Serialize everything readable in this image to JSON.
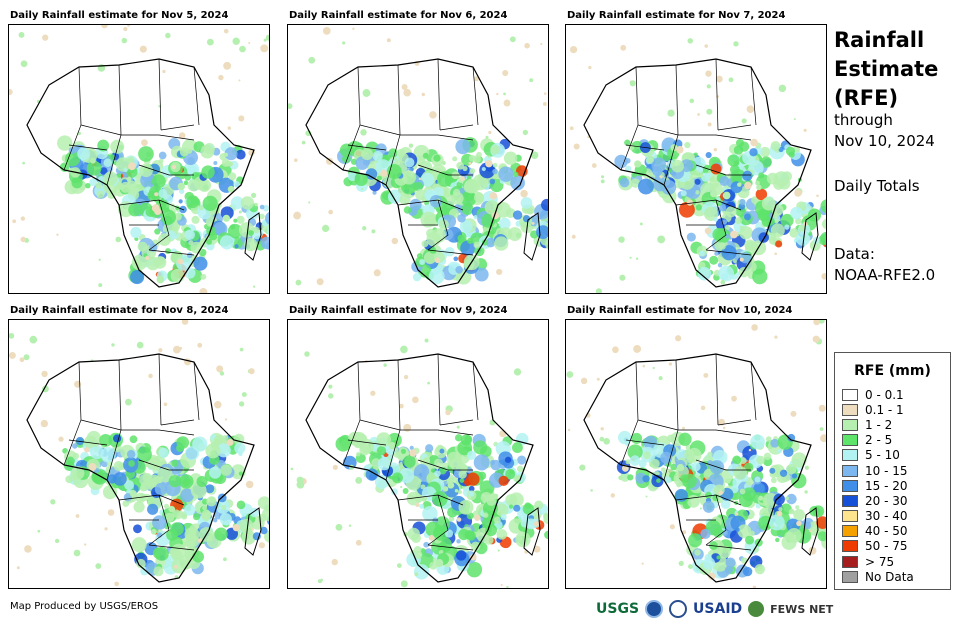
{
  "panels": [
    {
      "title": "Daily Rainfall estimate for Nov 5, 2024",
      "day": 5
    },
    {
      "title": "Daily Rainfall estimate for Nov 6, 2024",
      "day": 6
    },
    {
      "title": "Daily Rainfall estimate for Nov 7, 2024",
      "day": 7
    },
    {
      "title": "Daily Rainfall estimate for Nov 8, 2024",
      "day": 8
    },
    {
      "title": "Daily Rainfall estimate for Nov 9, 2024",
      "day": 9
    },
    {
      "title": "Daily Rainfall estimate for Nov 10, 2024",
      "day": 10
    }
  ],
  "side": {
    "title_line1": "Rainfall",
    "title_line2": "Estimate",
    "title_line3": "(RFE)",
    "through": "through",
    "date": "Nov 10, 2024",
    "totals": "Daily Totals",
    "data_label": "Data:",
    "data_source": "NOAA-RFE2.0"
  },
  "legend": {
    "title": "RFE (mm)",
    "items": [
      {
        "label": "0 - 0.1",
        "color": "#ffffff"
      },
      {
        "label": "0.1 - 1",
        "color": "#eedcbf"
      },
      {
        "label": "1 - 2",
        "color": "#b6f0b0"
      },
      {
        "label": "2 - 5",
        "color": "#5ee36b"
      },
      {
        "label": "5 - 10",
        "color": "#b3f2f2"
      },
      {
        "label": "10 - 15",
        "color": "#7cb7ef"
      },
      {
        "label": "15 - 20",
        "color": "#3f8ee8"
      },
      {
        "label": "20 - 30",
        "color": "#1550d8"
      },
      {
        "label": "30 - 40",
        "color": "#fbe48d"
      },
      {
        "label": "40 - 50",
        "color": "#f5a100"
      },
      {
        "label": "50 - 75",
        "color": "#ee3b00"
      },
      {
        "label": "> 75",
        "color": "#a61d1d"
      },
      {
        "label": "No Data",
        "color": "#a0a0a0"
      }
    ]
  },
  "footer": {
    "credit": "Map Produced by USGS/EROS",
    "logo_usgs": "USGS",
    "logo_usaid": "USAID",
    "logo_fews": "FEWS NET"
  }
}
